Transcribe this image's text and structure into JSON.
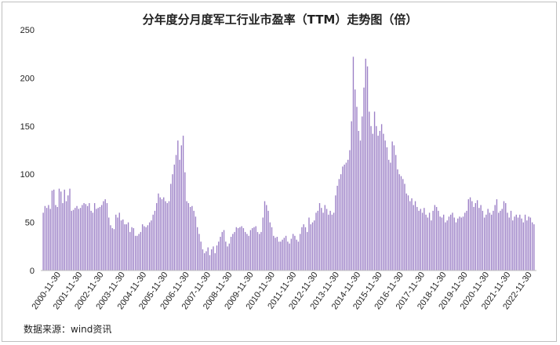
{
  "chart_data": {
    "type": "bar",
    "title": "分年度分月度军工行业市盈率（TTM）走势图（倍）",
    "source": "数据来源：wind资讯",
    "color": "#9B7FC6",
    "ylim": [
      0,
      250
    ],
    "yticks": [
      0,
      50,
      100,
      150,
      200,
      250
    ],
    "xtick_labels": [
      "2000-11-30",
      "2001-11-30",
      "2002-11-30",
      "2003-11-30",
      "2004-11-30",
      "2005-11-30",
      "2006-11-30",
      "2007-11-30",
      "2008-11-30",
      "2009-11-30",
      "2010-11-30",
      "2011-11-30",
      "2012-11-30",
      "2013-11-30",
      "2014-11-30",
      "2015-11-30",
      "2016-11-30",
      "2017-11-30",
      "2018-11-30",
      "2019-11-30",
      "2020-11-30",
      "2021-11-30",
      "2022-11-30"
    ],
    "values": [
      60,
      67,
      65,
      68,
      64,
      83,
      84,
      68,
      66,
      85,
      82,
      70,
      84,
      72,
      78,
      85,
      62,
      63,
      65,
      67,
      64,
      65,
      68,
      70,
      69,
      67,
      70,
      62,
      60,
      70,
      64,
      65,
      66,
      68,
      72,
      74,
      70,
      55,
      47,
      44,
      43,
      58,
      55,
      60,
      52,
      53,
      48,
      48,
      50,
      40,
      45,
      44,
      36,
      36,
      38,
      40,
      48,
      46,
      45,
      47,
      50,
      52,
      58,
      62,
      70,
      80,
      76,
      74,
      76,
      72,
      70,
      72,
      90,
      100,
      110,
      120,
      135,
      115,
      130,
      140,
      102,
      72,
      70,
      66,
      67,
      62,
      56,
      45,
      38,
      30,
      22,
      18,
      20,
      24,
      16,
      22,
      25,
      18,
      26,
      30,
      35,
      40,
      42,
      30,
      25,
      28,
      35,
      38,
      40,
      45,
      44,
      45,
      46,
      44,
      40,
      38,
      36,
      42,
      44,
      45,
      46,
      40,
      38,
      40,
      55,
      72,
      68,
      62,
      50,
      45,
      36,
      34,
      35,
      30,
      30,
      32,
      34,
      36,
      30,
      28,
      33,
      38,
      36,
      32,
      30,
      38,
      45,
      48,
      45,
      40,
      55,
      48,
      50,
      52,
      60,
      62,
      70,
      65,
      60,
      68,
      64,
      58,
      62,
      58,
      60,
      78,
      88,
      95,
      100,
      108,
      110,
      112,
      115,
      125,
      155,
      222,
      188,
      170,
      145,
      135,
      160,
      190,
      220,
      212,
      165,
      150,
      142,
      165,
      150,
      140,
      145,
      152,
      142,
      135,
      128,
      115,
      112,
      134,
      130,
      120,
      105,
      100,
      98,
      95,
      90,
      80,
      78,
      72,
      75,
      68,
      72,
      66,
      62,
      64,
      60,
      65,
      58,
      55,
      60,
      52,
      62,
      68,
      66,
      62,
      56,
      55,
      58,
      50,
      52,
      56,
      58,
      60,
      55,
      50,
      54,
      56,
      55,
      56,
      60,
      62,
      74,
      76,
      72,
      66,
      70,
      73,
      65,
      68,
      62,
      55,
      58,
      64,
      60,
      58,
      62,
      68,
      74,
      60,
      62,
      64,
      72,
      70,
      60,
      55,
      62,
      52,
      56,
      58,
      55,
      58,
      54,
      50,
      58,
      52,
      56,
      55,
      50,
      48
    ]
  }
}
